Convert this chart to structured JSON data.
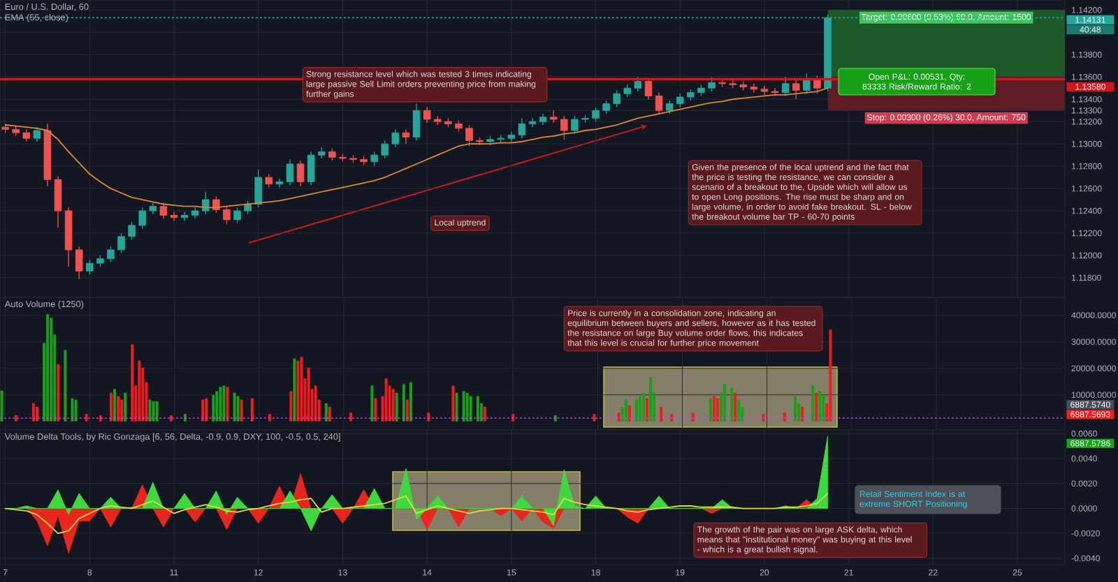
{
  "chart_data": [
    {
      "type": "candlestick",
      "title": "Euro / U.S. Dollar, 60",
      "subtitle": "EMA (55, close)",
      "categories": [
        "7",
        null,
        null,
        null,
        null,
        null,
        null,
        null,
        "8",
        null,
        null,
        null,
        null,
        null,
        null,
        null,
        "11",
        null,
        null,
        null,
        null,
        null,
        null,
        null,
        "12",
        null,
        null,
        null,
        null,
        null,
        null,
        null,
        "13",
        null,
        null,
        null,
        null,
        null,
        null,
        null,
        "14",
        null,
        null,
        null,
        null,
        null,
        null,
        null,
        "15",
        null,
        null,
        null,
        null,
        null,
        null,
        null,
        "18",
        null,
        null,
        null,
        null,
        null,
        null,
        null,
        "19",
        null,
        null,
        null,
        null,
        null,
        null,
        null,
        "20",
        null,
        null,
        null,
        null,
        null,
        null,
        null,
        "21",
        null,
        null,
        null,
        null,
        null,
        null,
        null,
        "22",
        null,
        null,
        null,
        null,
        null,
        null,
        null,
        "25",
        null,
        null,
        null,
        null
      ],
      "ohlc": [
        [
          1.1315,
          1.1318,
          1.131,
          1.1313
        ],
        [
          1.1313,
          1.1316,
          1.1307,
          1.131
        ],
        [
          1.131,
          1.1313,
          1.1302,
          1.1305
        ],
        [
          1.1305,
          1.1315,
          1.1302,
          1.1312
        ],
        [
          1.1312,
          1.1318,
          1.1262,
          1.1268
        ],
        [
          1.1268,
          1.1271,
          1.1225,
          1.124
        ],
        [
          1.124,
          1.1243,
          1.119,
          1.1205
        ],
        [
          1.1205,
          1.1208,
          1.1179,
          1.1186
        ],
        [
          1.1186,
          1.1196,
          1.1183,
          1.1193
        ],
        [
          1.1193,
          1.12,
          1.119,
          1.1197
        ],
        [
          1.1197,
          1.1208,
          1.1194,
          1.1205
        ],
        [
          1.1205,
          1.122,
          1.1202,
          1.1217
        ],
        [
          1.1217,
          1.123,
          1.1214,
          1.1227
        ],
        [
          1.1227,
          1.1243,
          1.1224,
          1.124
        ],
        [
          1.124,
          1.1247,
          1.1237,
          1.1244
        ],
        [
          1.1244,
          1.1247,
          1.1233,
          1.1236
        ],
        [
          1.1236,
          1.1239,
          1.1231,
          1.1234
        ],
        [
          1.1234,
          1.1239,
          1.1231,
          1.1236
        ],
        [
          1.1236,
          1.1243,
          1.1233,
          1.124
        ],
        [
          1.124,
          1.1257,
          1.1237,
          1.125
        ],
        [
          1.125,
          1.1253,
          1.1238,
          1.1241
        ],
        [
          1.1241,
          1.1244,
          1.1228,
          1.1232
        ],
        [
          1.1232,
          1.1243,
          1.1229,
          1.124
        ],
        [
          1.124,
          1.1249,
          1.1237,
          1.1246
        ],
        [
          1.1246,
          1.1277,
          1.1243,
          1.127
        ],
        [
          1.127,
          1.1273,
          1.1261,
          1.1264
        ],
        [
          1.1264,
          1.1269,
          1.1261,
          1.1266
        ],
        [
          1.1266,
          1.1286,
          1.1263,
          1.1282
        ],
        [
          1.1282,
          1.1285,
          1.1262,
          1.1266
        ],
        [
          1.1266,
          1.1293,
          1.1263,
          1.129
        ],
        [
          1.129,
          1.1297,
          1.1287,
          1.1293
        ],
        [
          1.1293,
          1.1296,
          1.1285,
          1.1288
        ],
        [
          1.1288,
          1.1291,
          1.1284,
          1.1287
        ],
        [
          1.1287,
          1.129,
          1.1283,
          1.1286
        ],
        [
          1.1286,
          1.1289,
          1.1281,
          1.1284
        ],
        [
          1.1284,
          1.1293,
          1.128,
          1.129
        ],
        [
          1.129,
          1.1303,
          1.1287,
          1.13
        ],
        [
          1.13,
          1.1313,
          1.1297,
          1.131
        ],
        [
          1.131,
          1.1313,
          1.13,
          1.1306
        ],
        [
          1.1306,
          1.1336,
          1.1303,
          1.133
        ],
        [
          1.133,
          1.1333,
          1.1319,
          1.1322
        ],
        [
          1.1322,
          1.1325,
          1.1317,
          1.132
        ],
        [
          1.132,
          1.1323,
          1.1315,
          1.1318
        ],
        [
          1.1318,
          1.1321,
          1.1311,
          1.1314
        ],
        [
          1.1314,
          1.1317,
          1.1298,
          1.1303
        ],
        [
          1.1303,
          1.1306,
          1.1299,
          1.1302
        ],
        [
          1.1302,
          1.1307,
          1.1299,
          1.1304
        ],
        [
          1.1304,
          1.1308,
          1.1301,
          1.1305
        ],
        [
          1.1305,
          1.1311,
          1.1302,
          1.1308
        ],
        [
          1.1308,
          1.1323,
          1.1305,
          1.1318
        ],
        [
          1.1318,
          1.1323,
          1.1315,
          1.132
        ],
        [
          1.132,
          1.1327,
          1.1317,
          1.1324
        ],
        [
          1.1324,
          1.133,
          1.1319,
          1.1322
        ],
        [
          1.1322,
          1.1325,
          1.1304,
          1.1312
        ],
        [
          1.1312,
          1.1325,
          1.1309,
          1.1322
        ],
        [
          1.1322,
          1.1326,
          1.1319,
          1.1323
        ],
        [
          1.1323,
          1.1333,
          1.132,
          1.133
        ],
        [
          1.133,
          1.1339,
          1.1327,
          1.1336
        ],
        [
          1.1336,
          1.1348,
          1.1333,
          1.1345
        ],
        [
          1.1345,
          1.1353,
          1.1342,
          1.135
        ],
        [
          1.135,
          1.136,
          1.1347,
          1.1356
        ],
        [
          1.1356,
          1.1359,
          1.134,
          1.1343
        ],
        [
          1.1343,
          1.1346,
          1.1327,
          1.133
        ],
        [
          1.133,
          1.1339,
          1.1327,
          1.1336
        ],
        [
          1.1336,
          1.1345,
          1.1333,
          1.1342
        ],
        [
          1.1342,
          1.1349,
          1.1339,
          1.1346
        ],
        [
          1.1346,
          1.1353,
          1.1343,
          1.135
        ],
        [
          1.135,
          1.136,
          1.1347,
          1.1355
        ],
        [
          1.1355,
          1.1358,
          1.1351,
          1.1354
        ],
        [
          1.1354,
          1.1357,
          1.135,
          1.1353
        ],
        [
          1.1353,
          1.1356,
          1.1348,
          1.1351
        ],
        [
          1.1351,
          1.1354,
          1.1346,
          1.1349
        ],
        [
          1.1349,
          1.1352,
          1.1344,
          1.1347
        ],
        [
          1.1347,
          1.135,
          1.1343,
          1.1346
        ],
        [
          1.1346,
          1.136,
          1.1343,
          1.1354
        ],
        [
          1.1354,
          1.1357,
          1.134,
          1.1348
        ],
        [
          1.1348,
          1.1363,
          1.1345,
          1.1358
        ],
        [
          1.1358,
          1.1361,
          1.1345,
          1.135
        ],
        [
          1.135,
          1.1416,
          1.1347,
          1.14131
        ],
        null,
        null,
        null,
        null,
        null,
        null,
        null,
        null,
        null,
        null,
        null,
        null,
        null,
        null,
        null,
        null,
        null,
        null,
        null,
        null,
        null,
        null
      ],
      "colors": [
        "#ef5350",
        "#ef5350",
        "#ef5350",
        "#26a69a",
        "#ef5350",
        "#ef5350",
        "#ef5350",
        "#ef5350",
        "#26a69a",
        "#26a69a",
        "#26a69a",
        "#26a69a",
        "#26a69a",
        "#26a69a",
        "#26a69a",
        "#ef5350",
        "#ef5350",
        "#26a69a",
        "#26a69a",
        "#26a69a",
        "#ef5350",
        "#ef5350",
        "#26a69a",
        "#26a69a",
        "#26a69a",
        "#ef5350",
        "#26a69a",
        "#26a69a",
        "#ef5350",
        "#26a69a",
        "#26a69a",
        "#ef5350",
        "#ef5350",
        "#ef5350",
        "#ef5350",
        "#26a69a",
        "#26a69a",
        "#26a69a",
        "#ef5350",
        "#26a69a",
        "#ef5350",
        "#ef5350",
        "#ef5350",
        "#ef5350",
        "#ef5350",
        "#ef5350",
        "#26a69a",
        "#26a69a",
        "#26a69a",
        "#26a69a",
        "#26a69a",
        "#26a69a",
        "#ef5350",
        "#ef5350",
        "#26a69a",
        "#26a69a",
        "#26a69a",
        "#26a69a",
        "#26a69a",
        "#26a69a",
        "#26a69a",
        "#ef5350",
        "#ef5350",
        "#26a69a",
        "#26a69a",
        "#26a69a",
        "#26a69a",
        "#26a69a",
        "#ef5350",
        "#ef5350",
        "#ef5350",
        "#ef5350",
        "#ef5350",
        "#ef5350",
        "#26a69a",
        "#ef5350",
        "#26a69a",
        "#ef5350",
        "#26a69a",
        null,
        null,
        null,
        null,
        null,
        null,
        null,
        null,
        null,
        null,
        null,
        null,
        null,
        null,
        null,
        null,
        null,
        null,
        null,
        null,
        null,
        null
      ],
      "series": [
        {
          "type": "line",
          "color": "#e0892f",
          "values": [
            1.1317,
            1.1316,
            1.1315,
            1.1314,
            1.1312,
            1.1304,
            1.1293,
            1.1283,
            1.1273,
            1.1266,
            1.126,
            1.1256,
            1.1252,
            1.125,
            1.1248,
            1.1246,
            1.1245,
            1.1244,
            1.1244,
            1.1243,
            1.1243,
            1.1244,
            1.1245,
            1.1246,
            1.1247,
            1.1248,
            1.1249,
            1.1251,
            1.1253,
            1.1255,
            1.1257,
            1.1259,
            1.1261,
            1.1263,
            1.1265,
            1.1267,
            1.127,
            1.1274,
            1.1278,
            1.1282,
            1.1286,
            1.129,
            1.1294,
            1.1298,
            1.13,
            1.13,
            1.13,
            1.1301,
            1.1301,
            1.1302,
            1.1304,
            1.1306,
            1.1307,
            1.1309,
            1.131,
            1.1312,
            1.1313,
            1.1315,
            1.1317,
            1.132,
            1.1323,
            1.1325,
            1.1327,
            1.1329,
            1.1331,
            1.1333,
            1.1335,
            1.1337,
            1.1338,
            1.134,
            1.1341,
            1.1342,
            1.1343,
            1.1344,
            1.1344,
            1.1345,
            1.1346,
            1.1347,
            1.135,
            null,
            null,
            null,
            null,
            null,
            null,
            null,
            null,
            null,
            null,
            null,
            null,
            null,
            null,
            null,
            null,
            null,
            null,
            null,
            null,
            null,
            null
          ]
        }
      ],
      "ylim": [
        1.11625,
        1.1429
      ],
      "yticks": [
        {
          "value": 1.118,
          "label": "1.11800"
        },
        {
          "value": 1.12,
          "label": "1.12000"
        },
        {
          "value": 1.122,
          "label": "1.12200"
        },
        {
          "value": 1.124,
          "label": "1.12400"
        },
        {
          "value": 1.126,
          "label": "1.12600"
        },
        {
          "value": 1.128,
          "label": "1.12800"
        },
        {
          "value": 1.13,
          "label": "1.13000"
        },
        {
          "value": 1.132,
          "label": "1.13200"
        },
        {
          "value": 1.133,
          "label": "1.13300"
        },
        {
          "value": 1.134,
          "label": "1.13400"
        },
        {
          "value": 1.136,
          "label": "1.13600"
        },
        {
          "value": 1.138,
          "label": "1.13800"
        },
        {
          "value": 1.14,
          "label": null
        },
        {
          "value": 1.142,
          "label": "1.14200"
        }
      ],
      "grid": true,
      "tick_labels": "y",
      "ref_lines": [
        {
          "axis": "y",
          "value": 1.1358,
          "label": "1.13580",
          "color": "#d0161f"
        },
        {
          "axis": "y",
          "value": 1.14131,
          "label": "1.14131",
          "color": "#26a69a",
          "line_style": "dotted"
        }
      ],
      "bands": [
        {
          "axis": "y",
          "from": 1.136,
          "to": 1.142,
          "label": "Target: 0.00600 (0.53%) 60.0, Amount: 1500",
          "color": "#1d5a2a"
        },
        {
          "axis": "y",
          "from": 1.133,
          "to": 1.136,
          "label": "Stop: 0.00300 (0.26%) 30.0, Amount: 750",
          "color": "#5e1c24"
        }
      ],
      "annotations": [
        "Strong resistance level which was tested 3 times indicating large passive Sell Limit orders preventing price from making further gains",
        "Local uptrend",
        "Given the presence of the local uptrend and the fact that the price is testing the resistance, we can consider a scenario of a breakout to the, Upside which will allow us to open Long positions. The rise must be sharp and on large volume, in order to avoid fake breakout. SL - below the breakout volume bar TP - 60-70 points",
        "Open P&L: 0.00531, Qty: 83333 Risk/Reward Ratio: 2",
        "40:48"
      ]
    },
    {
      "type": "bar",
      "title": "Auto Volume (1250)",
      "categories": [
        null,
        "7",
        null,
        null,
        null,
        null,
        null,
        null,
        null,
        null,
        null,
        null,
        null,
        null,
        null,
        null,
        null,
        null,
        null,
        null,
        null,
        null,
        null,
        null,
        null,
        "8",
        null,
        null,
        null,
        null,
        null,
        null,
        null,
        null,
        null,
        null,
        null,
        null,
        null,
        null,
        null,
        null,
        null,
        null,
        null,
        null,
        null,
        null,
        null,
        "11",
        null,
        null,
        null,
        null,
        null,
        null,
        null,
        null,
        null,
        null,
        null,
        null,
        null,
        null,
        null,
        null,
        null,
        null,
        null,
        null,
        null,
        null,
        null,
        "12",
        null,
        null,
        null,
        null,
        null,
        null,
        null,
        null,
        null,
        null,
        null,
        null,
        null,
        null,
        null,
        null,
        null,
        null,
        null,
        null,
        null,
        null,
        null,
        "13",
        null,
        null,
        null,
        null,
        null,
        null,
        null,
        null,
        null,
        null,
        null,
        null,
        null,
        null,
        null,
        null,
        null,
        null,
        null,
        null,
        null,
        null,
        null,
        "14",
        null,
        null,
        null,
        null,
        null,
        null,
        null,
        null,
        null,
        null,
        null,
        null,
        null,
        null,
        null,
        null,
        null,
        null,
        null,
        null,
        null,
        null,
        null,
        "15",
        null,
        null,
        null,
        null,
        null,
        null,
        null,
        null,
        null,
        null,
        null,
        null,
        null,
        null,
        null,
        null,
        null,
        null,
        null,
        null,
        null,
        null,
        null,
        "18",
        null,
        null,
        null,
        null,
        null,
        null,
        null,
        null,
        null,
        null,
        null,
        null,
        null,
        null,
        null,
        null,
        null,
        null,
        null,
        null,
        null,
        null,
        null,
        "19",
        null,
        null,
        null,
        null,
        null,
        null,
        null,
        null,
        null,
        null,
        null,
        null,
        null,
        null,
        null,
        null,
        null,
        null,
        null,
        null,
        null,
        null,
        null,
        "20",
        null,
        null,
        null,
        null,
        null,
        null,
        null,
        null,
        null,
        null,
        null,
        null,
        null,
        null,
        null,
        null,
        null,
        null,
        null,
        null,
        null,
        null,
        null,
        "21",
        null,
        null,
        null,
        null,
        null,
        null,
        null,
        null,
        null,
        null,
        null,
        null,
        null,
        null,
        null,
        null,
        null,
        null,
        null,
        null,
        null,
        null,
        null,
        "22",
        null,
        null,
        null,
        null,
        null,
        null,
        null,
        null,
        null,
        null,
        null,
        null,
        null,
        null,
        null,
        null,
        null,
        null,
        null,
        null,
        null,
        null,
        null,
        "25",
        null,
        null,
        null,
        null,
        null,
        null,
        null,
        null,
        null,
        null,
        null,
        null
      ],
      "values": [
        11600,
        null,
        null,
        null,
        2300,
        null,
        null,
        null,
        null,
        6800,
        5500,
        null,
        29600,
        40400,
        39000,
        32800,
        21600,
        null,
        26900,
        null,
        8700,
        8200,
        null,
        null,
        2800,
        null,
        null,
        null,
        2300,
        null,
        null,
        10800,
        12200,
        9500,
        8200,
        10800,
        null,
        29100,
        13500,
        22900,
        20200,
        14800,
        8200,
        7600,
        7600,
        null,
        null,
        null,
        2300,
        null,
        null,
        null,
        2800,
        null,
        null,
        null,
        null,
        8200,
        8700,
        null,
        10000,
        11400,
        13000,
        13500,
        13000,
        null,
        10800,
        9500,
        8200,
        null,
        null,
        8700,
        null,
        null,
        null,
        null,
        2800,
        null,
        null,
        null,
        null,
        null,
        11400,
        23700,
        22900,
        24300,
        16200,
        20200,
        12200,
        13500,
        8200,
        null,
        6800,
        5500,
        null,
        null,
        null,
        null,
        null,
        3300,
        null,
        null,
        null,
        null,
        null,
        13500,
        8700,
        null,
        9500,
        16200,
        13500,
        12200,
        10800,
        null,
        14100,
        8200,
        14800,
        null,
        null,
        null,
        null,
        3300,
        null,
        null,
        null,
        null,
        null,
        null,
        13500,
        10800,
        null,
        11400,
        10800,
        9500,
        null,
        9500,
        6800,
        5500,
        null,
        null,
        null,
        null,
        null,
        null,
        null,
        2800,
        null,
        null,
        null,
        null,
        null,
        null,
        null,
        null,
        null,
        null,
        null,
        2300,
        null,
        null,
        null,
        null,
        null,
        null,
        null,
        null,
        null,
        null,
        2800,
        null,
        null,
        null,
        null,
        null,
        null,
        3300,
        5500,
        8200,
        6000,
        null,
        8200,
        9500,
        10800,
        8700,
        16700,
        10800,
        null,
        5500,
        null,
        null,
        2800,
        null,
        null,
        null,
        null,
        null,
        3300,
        null,
        null,
        null,
        null,
        8700,
        9500,
        8700,
        10800,
        14100,
        null,
        12700,
        10800,
        8200,
        5500,
        null,
        null,
        null,
        null,
        null,
        2800,
        null,
        null,
        null,
        null,
        null,
        3300,
        null,
        null,
        9500,
        6800,
        5500,
        null,
        null,
        13700,
        10800,
        11600,
        10000,
        6800,
        34600,
        null,
        null,
        null,
        null,
        null,
        null,
        null,
        null,
        null,
        null,
        null,
        null,
        null,
        null,
        null,
        null,
        null,
        null,
        null,
        null,
        null,
        null,
        null,
        null,
        null,
        null,
        null,
        null,
        null,
        null,
        null,
        null,
        null,
        null,
        null,
        null,
        null,
        null,
        null,
        null,
        null,
        null,
        null,
        null,
        null,
        null,
        null,
        null,
        null,
        null,
        null,
        null,
        null,
        null,
        null,
        null,
        null,
        null,
        null,
        null,
        null,
        null,
        null,
        null,
        null,
        null
      ],
      "colors": [
        "#1a9f1a",
        null,
        null,
        null,
        "#ee1c1c",
        null,
        null,
        null,
        null,
        "#ee1c1c",
        "#ee1c1c",
        null,
        "#1a9f1a",
        "#1a9f1a",
        "#1a9f1a",
        "#1a9f1a",
        "#ee1c1c",
        null,
        "#1a9f1a",
        null,
        "#1a9f1a",
        "#1a9f1a",
        null,
        null,
        "#ee1c1c",
        null,
        null,
        null,
        "#ee1c1c",
        null,
        null,
        "#ee1c1c",
        "#1a9f1a",
        "#ee1c1c",
        "#ee1c1c",
        "#1a9f1a",
        null,
        "#ee1c1c",
        "#ee1c1c",
        "#ee1c1c",
        "#ee1c1c",
        "#ee1c1c",
        "#1a9f1a",
        "#1a9f1a",
        "#1a9f1a",
        null,
        null,
        null,
        "#ee1c1c",
        null,
        null,
        null,
        "#1a9f1a",
        null,
        null,
        null,
        null,
        "#ee1c1c",
        "#ee1c1c",
        null,
        "#1a9f1a",
        "#1a9f1a",
        "#1a9f1a",
        "#1a9f1a",
        "#ee1c1c",
        null,
        "#1a9f1a",
        "#1a9f1a",
        "#ee1c1c",
        null,
        null,
        "#ee1c1c",
        null,
        null,
        null,
        null,
        "#ee1c1c",
        null,
        null,
        null,
        null,
        null,
        "#ee1c1c",
        "#1a9f1a",
        "#ee1c1c",
        "#ee1c1c",
        "#ee1c1c",
        "#ee1c1c",
        "#ee1c1c",
        "#ee1c1c",
        "#ee1c1c",
        null,
        "#1a9f1a",
        "#ee1c1c",
        null,
        null,
        null,
        null,
        null,
        "#ee1c1c",
        null,
        null,
        null,
        null,
        null,
        "#1a9f1a",
        "#ee1c1c",
        null,
        "#ee1c1c",
        "#ee1c1c",
        "#ee1c1c",
        "#ee1c1c",
        "#1a9f1a",
        null,
        "#1a9f1a",
        "#ee1c1c",
        "#1a9f1a",
        null,
        null,
        null,
        null,
        "#ee1c1c",
        null,
        null,
        null,
        null,
        null,
        null,
        "#ee1c1c",
        "#1a9f1a",
        null,
        "#1a9f1a",
        "#1a9f1a",
        "#1a9f1a",
        null,
        "#1a9f1a",
        "#1a9f1a",
        "#ee1c1c",
        null,
        null,
        null,
        null,
        null,
        null,
        null,
        "#ee1c1c",
        null,
        null,
        null,
        null,
        null,
        null,
        null,
        null,
        null,
        null,
        null,
        "#1a9f1a",
        null,
        null,
        null,
        null,
        null,
        null,
        null,
        null,
        null,
        null,
        "#ee1c1c",
        null,
        null,
        null,
        null,
        null,
        null,
        "#ee1c1c",
        "#1a9f1a",
        "#1a9f1a",
        "#ee1c1c",
        null,
        "#1a9f1a",
        "#1a9f1a",
        "#1a9f1a",
        "#ee1c1c",
        "#1a9f1a",
        "#1a9f1a",
        null,
        "#ee1c1c",
        null,
        null,
        "#ee1c1c",
        null,
        null,
        null,
        null,
        null,
        "#ee1c1c",
        null,
        null,
        null,
        null,
        "#1a9f1a",
        "#ee1c1c",
        "#ee1c1c",
        "#1a9f1a",
        "#1a9f1a",
        null,
        "#1a9f1a",
        "#ee1c1c",
        "#1a9f1a",
        "#1a9f1a",
        null,
        null,
        null,
        null,
        null,
        "#ee1c1c",
        null,
        null,
        null,
        null,
        null,
        "#ee1c1c",
        null,
        null,
        "#1a9f1a",
        "#1a9f1a",
        "#ee1c1c",
        null,
        null,
        "#1a9f1a",
        "#ee1c1c",
        "#1a9f1a",
        "#1a9f1a",
        "#ee1c1c",
        "#ee1c1c",
        null,
        null,
        null,
        null,
        null,
        null,
        null,
        null,
        null,
        null,
        null,
        null,
        null,
        null,
        null,
        null,
        null,
        null,
        null,
        null,
        null,
        null,
        null,
        null,
        null,
        null,
        null,
        null,
        null,
        null,
        null,
        null,
        null,
        null,
        null,
        null,
        null,
        null,
        null,
        null,
        null,
        null,
        null,
        null,
        null,
        null,
        null,
        null,
        null,
        null,
        null,
        null,
        null,
        null,
        null,
        null,
        null,
        null,
        null,
        null,
        null,
        null,
        null,
        null,
        null,
        null
      ],
      "ylim": [
        -3200,
        46800
      ],
      "yticks": [
        {
          "value": 10000,
          "label": "10000.0000"
        },
        {
          "value": 20000,
          "label": "20000.0000"
        },
        {
          "value": 30000,
          "label": "30000.0000"
        },
        {
          "value": 40000,
          "label": "40000.0000"
        }
      ],
      "grid": true,
      "tick_labels": "y",
      "ref_lines": [
        {
          "axis": "y",
          "value": 1250,
          "color": "#e040fb",
          "line_style": "dotted"
        }
      ],
      "annotations": [
        "Price is currently in a consolidation zone, indicating an equilibrium between buyers and sellers, however as it has tested the resistance on large Buy volume order flows, this indicates that this level is crucial for further price movement",
        "6887.5740",
        "6887.5693",
        "6887.5786"
      ]
    },
    {
      "type": "area",
      "title": "Volume Delta Tools, by Ric Gonzaga [6, 56, Delta, -0.9, 0.9, DXY, 100, -0.5, 0.5, 240]",
      "categories": [
        "7",
        null,
        null,
        null,
        null,
        null,
        null,
        null,
        "8",
        null,
        null,
        null,
        null,
        null,
        null,
        null,
        "11",
        null,
        null,
        null,
        null,
        null,
        null,
        null,
        "12",
        null,
        null,
        null,
        null,
        null,
        null,
        null,
        "13",
        null,
        null,
        null,
        null,
        null,
        null,
        null,
        "14",
        null,
        null,
        null,
        null,
        null,
        null,
        null,
        "15",
        null,
        null,
        null,
        null,
        null,
        null,
        null,
        "18",
        null,
        null,
        null,
        null,
        null,
        null,
        null,
        "19",
        null,
        null,
        null,
        null,
        null,
        null,
        null,
        "20",
        null,
        null,
        null,
        null,
        null,
        null,
        null,
        "21",
        null,
        null,
        null,
        null,
        null,
        null,
        null,
        "22",
        null,
        null,
        null,
        null,
        null,
        null,
        null,
        "25",
        null,
        null,
        null,
        null
      ],
      "series": [
        {
          "type": "area",
          "color": "#e8261e",
          "values": [
            0,
            0,
            0,
            -0.001,
            -0.003,
            -0.0006,
            -0.0036,
            -0.001,
            -0.001,
            0,
            -0.0015,
            0,
            0,
            0.0019,
            0,
            -0.0015,
            0,
            0,
            -0.0011,
            0,
            0,
            -0.0017,
            0,
            0,
            -0.0012,
            0,
            0.0018,
            0,
            0.0028,
            0,
            0,
            0,
            -0.0012,
            0,
            0.0015,
            0,
            0,
            0,
            0,
            0,
            -0.0017,
            0,
            0,
            -0.0015,
            0,
            0,
            0,
            -0.0006,
            0,
            -0.001,
            0,
            -0.0011,
            -0.0016,
            0,
            0,
            0,
            0,
            0,
            0,
            -0.0007,
            -0.0012,
            0,
            0,
            0,
            0,
            0,
            0,
            -0.0004,
            0,
            0,
            0,
            0,
            0,
            0,
            0,
            0,
            0.0007,
            0,
            0,
            null,
            null,
            null,
            null,
            null,
            null,
            null,
            null,
            null,
            null,
            null,
            null,
            null,
            null,
            null,
            null,
            null,
            null,
            null,
            null,
            null,
            null
          ]
        },
        {
          "type": "area",
          "color": "#3ed93e",
          "values": [
            0,
            0,
            0.0002,
            0,
            0,
            0.0015,
            -0.0005,
            0.0012,
            0,
            0,
            0.0009,
            0,
            0.0001,
            0,
            0.0021,
            0,
            0,
            0.0012,
            0,
            0,
            0.0014,
            -0.0005,
            0.0009,
            0,
            0,
            0,
            0,
            0.0014,
            0,
            -0.0018,
            0,
            0.0011,
            0,
            0,
            0,
            0.0016,
            0,
            0,
            0.0032,
            -0.0009,
            0,
            0.001,
            0,
            0,
            0,
            0,
            0,
            0,
            0,
            0.001,
            0,
            0,
            -0.0014,
            0.0031,
            0.0002,
            0,
            0.001,
            0,
            0,
            0,
            0,
            0,
            0.001,
            0,
            0,
            0,
            0,
            0,
            0.0007,
            0,
            0,
            0,
            0,
            0,
            0.0002,
            0,
            0,
            0.0008,
            0.0058,
            null,
            null,
            null,
            null,
            null,
            null,
            null,
            null,
            null,
            null,
            null,
            null,
            null,
            null,
            null,
            null,
            null,
            null,
            null,
            null,
            null,
            null
          ]
        },
        {
          "type": "line",
          "color": "#e8d44a",
          "values": [
            0,
            -0.0001,
            -0.0002,
            -0.0005,
            -0.0012,
            -0.002,
            -0.0018,
            -0.0008,
            -0.0004,
            0,
            0.0002,
            0.0001,
            0,
            0.0003,
            0.0006,
            0.0001,
            -0.0004,
            -0.0001,
            0.0001,
            0.0003,
            0.0001,
            -0.0002,
            -0.0003,
            -0.0001,
            0,
            0.0002,
            0.0004,
            0.0005,
            0.0007,
            0.0008,
            -0.0003,
            0,
            0,
            0.0001,
            0.0002,
            0.0003,
            0.0004,
            0.0007,
            0.001,
            -0.0004,
            -0.0001,
            0.0002,
            0,
            -0.0002,
            -0.0004,
            -0.0002,
            -0.0001,
            0,
            0,
            -0.0001,
            -0.0002,
            -0.0003,
            -0.0005,
            0.0008,
            0.0005,
            0.0003,
            0.0002,
            0.0001,
            0,
            -0.0002,
            -0.0003,
            -0.0001,
            0,
            0.0001,
            0.0002,
            0.0002,
            0.0001,
            0.0001,
            0.0001,
            0.0001,
            0,
            0,
            0,
            0,
            0.0001,
            0.0001,
            0.0002,
            0.0004,
            0.0012,
            null,
            null,
            null,
            null,
            null,
            null,
            null,
            null,
            null,
            null,
            null,
            null,
            null,
            null,
            null,
            null,
            null,
            null,
            null,
            null,
            null,
            null
          ]
        }
      ],
      "ylim": [
        -0.0045,
        0.0063
      ],
      "yticks": [
        {
          "value": -0.004,
          "label": "-0.0040"
        },
        {
          "value": -0.002,
          "label": "-0.0020"
        },
        {
          "value": 0,
          "label": "0.0000"
        },
        {
          "value": 0.002,
          "label": "0.0020"
        },
        {
          "value": 0.004,
          "label": "0.0040"
        },
        {
          "value": 0.006,
          "label": "0.0060"
        }
      ],
      "grid": true,
      "annotations": [
        "The growth of the pair was on large ASK delta, which means that \"institutional money\" was buying at this level - which is a great bullish signal.",
        "Retail Sentiment Index is at extreme SHORT Positioning"
      ]
    }
  ]
}
